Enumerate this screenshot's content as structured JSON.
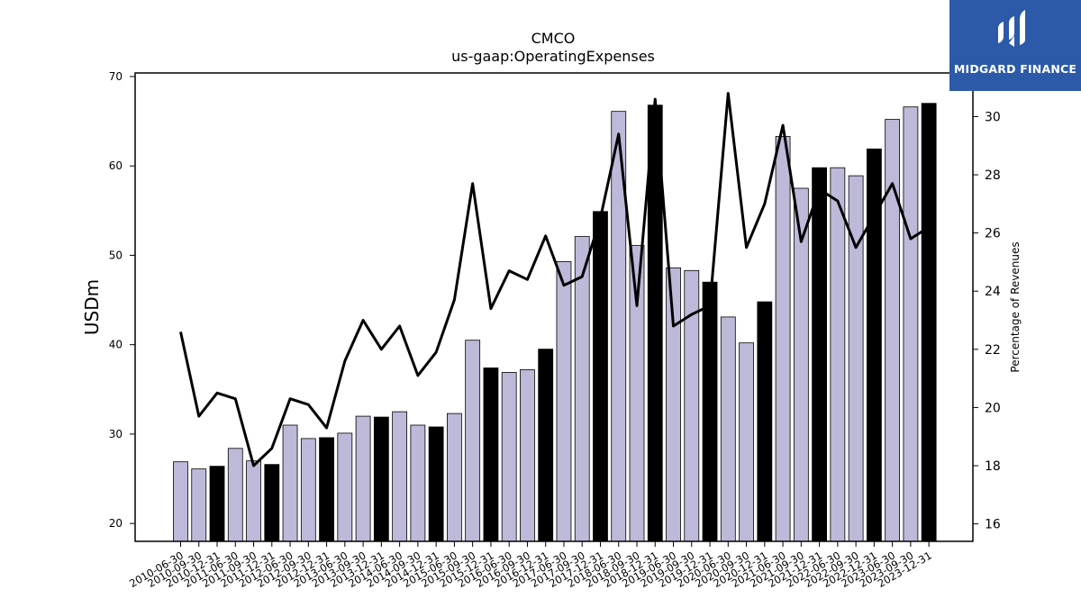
{
  "brand": {
    "name": "MIDGARD FINANCE",
    "color": "#2c5aa8"
  },
  "chart_data": {
    "type": "bar",
    "title": "CMCO",
    "subtitle": "us-gaap:OperatingExpenses",
    "ylabel": "USDm",
    "y2label": "Percentage of Revenues",
    "ylim": [
      18,
      70.4
    ],
    "y2lim": [
      15.4,
      31.5
    ],
    "yticks": [
      20,
      30,
      40,
      50,
      60,
      70
    ],
    "y2ticks": [
      16,
      18,
      20,
      22,
      24,
      26,
      28,
      30
    ],
    "grid": false,
    "colors": {
      "quarter": "#bdb9d9",
      "year_end": "#000000",
      "line": "#000000"
    },
    "categories": [
      "2010-06-30",
      "2010-09-30",
      "2010-12-31",
      "2011-06-30",
      "2011-09-30",
      "2011-12-31",
      "2012-06-30",
      "2012-09-30",
      "2012-12-31",
      "2013-06-30",
      "2013-09-30",
      "2013-12-31",
      "2014-06-30",
      "2014-09-30",
      "2014-12-31",
      "2015-06-30",
      "2015-09-30",
      "2015-12-31",
      "2016-06-30",
      "2016-09-30",
      "2016-12-31",
      "2017-06-30",
      "2017-09-30",
      "2017-12-31",
      "2018-06-30",
      "2018-09-30",
      "2018-12-31",
      "2019-06-30",
      "2019-09-30",
      "2019-12-31",
      "2020-06-30",
      "2020-09-30",
      "2020-12-31",
      "2021-06-30",
      "2021-09-30",
      "2021-12-31",
      "2022-06-30",
      "2022-09-30",
      "2022-12-31",
      "2023-06-30",
      "2023-09-30",
      "2023-12-31"
    ],
    "series": [
      {
        "kind": "bar",
        "values": [
          26.9,
          26.1,
          26.4,
          28.4,
          27.0,
          26.6,
          31.0,
          29.5,
          29.6,
          30.1,
          32.0,
          31.9,
          32.5,
          31.0,
          30.8,
          32.3,
          40.5,
          37.4,
          36.9,
          37.2,
          39.5,
          49.3,
          52.1,
          54.9,
          66.1,
          51.1,
          66.8,
          48.6,
          48.3,
          47.0,
          43.1,
          40.2,
          44.8,
          63.3,
          57.5,
          59.8,
          59.8,
          58.9,
          61.9,
          65.2,
          66.6,
          67.0
        ],
        "highlight": [
          false,
          false,
          true,
          false,
          false,
          true,
          false,
          false,
          true,
          false,
          false,
          true,
          false,
          false,
          true,
          false,
          false,
          true,
          false,
          false,
          true,
          false,
          false,
          true,
          false,
          false,
          true,
          false,
          false,
          true,
          false,
          false,
          true,
          false,
          false,
          true,
          false,
          false,
          true,
          false,
          false,
          true
        ]
      },
      {
        "kind": "line",
        "axis": "right",
        "values": [
          22.6,
          19.7,
          20.5,
          20.3,
          18.0,
          18.6,
          20.3,
          20.1,
          19.3,
          21.6,
          23.0,
          22.0,
          22.8,
          21.1,
          21.9,
          23.7,
          27.7,
          23.4,
          24.7,
          24.4,
          25.9,
          24.2,
          24.5,
          26.5,
          29.4,
          23.5,
          30.6,
          22.8,
          23.2,
          23.5,
          30.8,
          25.5,
          27.0,
          29.7,
          25.7,
          27.5,
          27.1,
          25.5,
          26.6,
          27.7,
          25.8,
          26.2
        ]
      }
    ]
  }
}
